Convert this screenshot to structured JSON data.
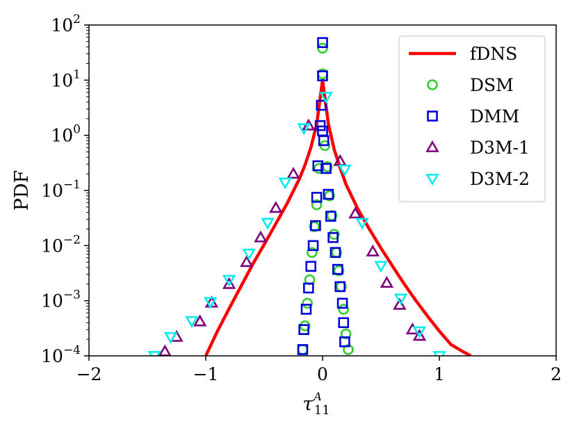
{
  "chart_data": {
    "type": "scatter",
    "title": "",
    "xlabel": {
      "base": "τ",
      "sub": "11",
      "sup": "A"
    },
    "ylabel": "PDF",
    "xlim": [
      -2,
      2
    ],
    "ylim": [
      0.0001,
      100
    ],
    "yscale": "log",
    "grid": false,
    "legend_position": "top-right",
    "x_ticks": [
      -2,
      -1,
      0,
      1,
      2
    ],
    "x_tick_labels": [
      "−2",
      "−1",
      "0",
      "1",
      "2"
    ],
    "y_ticks": [
      0.0001,
      0.001,
      0.01,
      0.1,
      1,
      10,
      100
    ],
    "y_tick_labels": [
      {
        "base": "10",
        "exp": "−4"
      },
      {
        "base": "10",
        "exp": "−3"
      },
      {
        "base": "10",
        "exp": "−2"
      },
      {
        "base": "10",
        "exp": "−1"
      },
      {
        "base": "10",
        "exp": "0"
      },
      {
        "base": "10",
        "exp": "1"
      },
      {
        "base": "10",
        "exp": "2"
      }
    ],
    "series": [
      {
        "name": "fDNS",
        "kind": "line",
        "color": "#ff0000",
        "x": [
          -1.0,
          -0.9,
          -0.8,
          -0.7,
          -0.6,
          -0.5,
          -0.4,
          -0.3,
          -0.2,
          -0.15,
          -0.1,
          -0.05,
          0.0,
          0.05,
          0.1,
          0.15,
          0.2,
          0.3,
          0.4,
          0.5,
          0.6,
          0.7,
          0.8,
          0.9,
          1.0,
          1.1,
          1.2,
          1.27
        ],
        "y": [
          0.0001,
          0.00028,
          0.00072,
          0.0018,
          0.0045,
          0.0105,
          0.025,
          0.06,
          0.16,
          0.29,
          0.6,
          1.6,
          10,
          1.6,
          0.55,
          0.26,
          0.13,
          0.047,
          0.02,
          0.009,
          0.0042,
          0.002,
          0.001,
          0.00052,
          0.00028,
          0.00016,
          0.00012,
          0.0001
        ]
      },
      {
        "name": "DSM",
        "kind": "marker",
        "marker": "circle",
        "color": "#33cc33",
        "x": [
          -0.17,
          -0.15,
          -0.13,
          -0.11,
          -0.09,
          -0.07,
          -0.05,
          -0.03,
          0.0,
          0.0,
          0.02,
          0.04,
          0.06,
          0.08,
          0.1,
          0.12,
          0.14,
          0.16,
          0.18,
          0.2,
          0.22
        ],
        "y": [
          0.00013,
          0.00035,
          0.0009,
          0.0024,
          0.0075,
          0.022,
          0.055,
          0.25,
          38,
          13,
          0.65,
          0.27,
          0.08,
          0.035,
          0.016,
          0.0075,
          0.0035,
          0.0018,
          0.0007,
          0.00025,
          0.00013
        ]
      },
      {
        "name": "DMM",
        "kind": "marker",
        "marker": "square",
        "color": "#0000dd",
        "x": [
          -0.17,
          -0.16,
          -0.14,
          -0.12,
          -0.1,
          -0.08,
          -0.06,
          -0.05,
          -0.04,
          -0.02,
          -0.01,
          0.0,
          0.0,
          0.0,
          0.01,
          0.03,
          0.05,
          0.07,
          0.09,
          0.11,
          0.13,
          0.15,
          0.17,
          0.18,
          0.19
        ],
        "y": [
          0.00013,
          0.0003,
          0.0007,
          0.0017,
          0.0042,
          0.01,
          0.023,
          0.075,
          0.28,
          1.5,
          3.5,
          48,
          12,
          1.2,
          0.8,
          0.25,
          0.085,
          0.034,
          0.014,
          0.0075,
          0.0037,
          0.0018,
          0.0009,
          0.0004,
          0.00018
        ]
      },
      {
        "name": "D3M-1",
        "kind": "marker",
        "marker": "triangle-up",
        "color": "#7f007f",
        "x": [
          -1.35,
          -1.25,
          -1.05,
          -0.95,
          -0.8,
          -0.65,
          -0.53,
          -0.4,
          -0.25,
          -0.12,
          0.15,
          0.28,
          0.43,
          0.55,
          0.66,
          0.77,
          0.83
        ],
        "y": [
          0.00012,
          0.00022,
          0.00042,
          0.00092,
          0.002,
          0.005,
          0.014,
          0.048,
          0.2,
          1.5,
          0.34,
          0.038,
          0.0078,
          0.0021,
          0.00084,
          0.0003,
          0.00023
        ]
      },
      {
        "name": "D3M-2",
        "kind": "marker",
        "marker": "triangle-down",
        "color": "#00eeee",
        "x": [
          -1.44,
          -1.3,
          -1.12,
          -0.96,
          -0.8,
          -0.63,
          -0.47,
          -0.32,
          -0.16,
          0.03,
          0.19,
          0.34,
          0.5,
          0.67,
          0.83,
          1.0
        ],
        "y": [
          0.0001,
          0.00022,
          0.00043,
          0.00095,
          0.0024,
          0.0072,
          0.026,
          0.14,
          1.35,
          5,
          0.24,
          0.026,
          0.0043,
          0.0011,
          0.00028,
          0.0001
        ]
      }
    ]
  }
}
